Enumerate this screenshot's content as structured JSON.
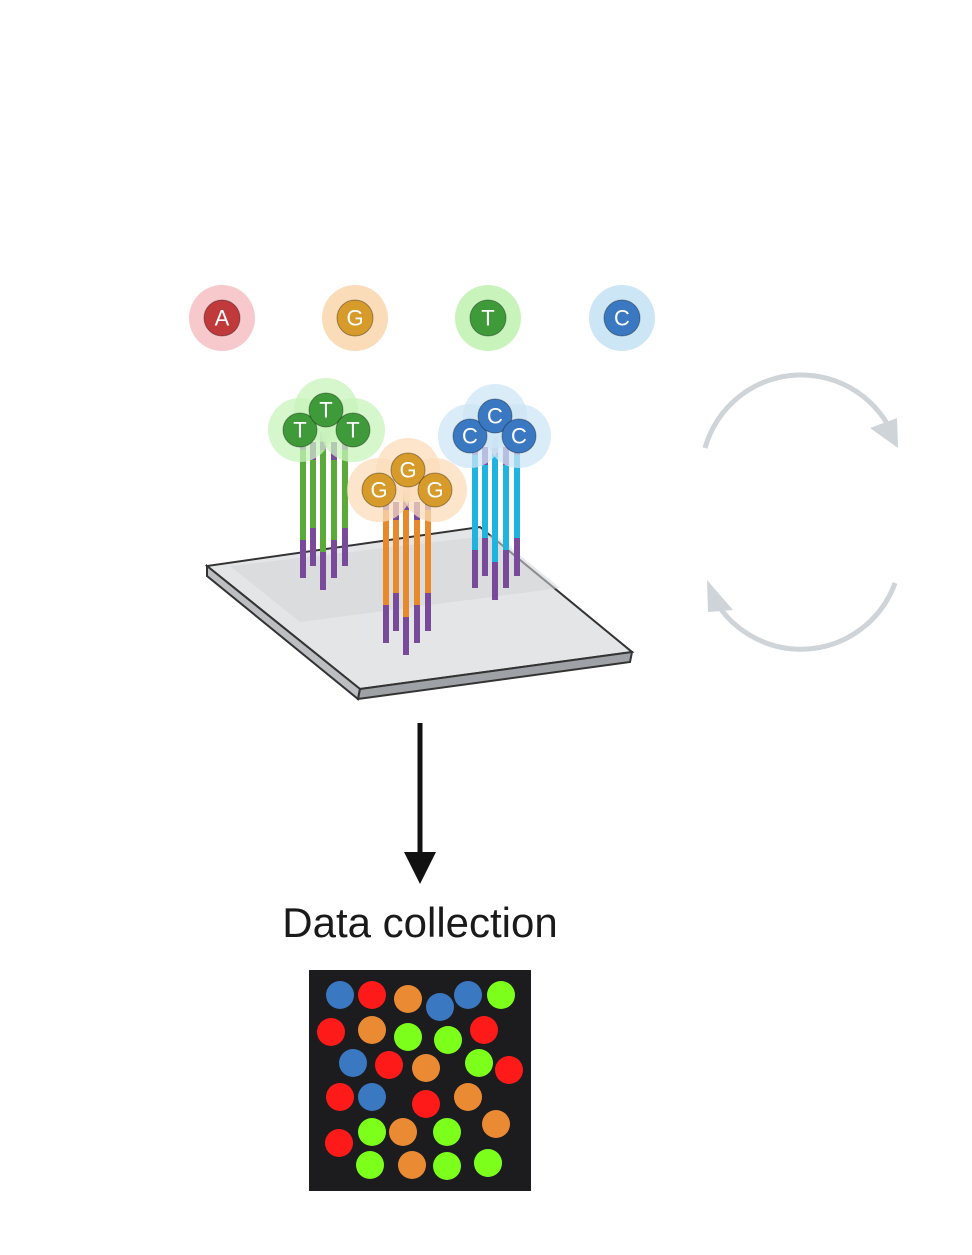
{
  "nucleotides": [
    {
      "letter": "A",
      "color": "#c0393b",
      "halo": "#f7c9cc"
    },
    {
      "letter": "G",
      "color": "#d69b2a",
      "halo": "#fbdcb9"
    },
    {
      "letter": "T",
      "color": "#3f9a3a",
      "halo": "#c8f3bb"
    },
    {
      "letter": "C",
      "color": "#3a78c2",
      "halo": "#cde6f6"
    }
  ],
  "clusters": [
    {
      "letter": "T",
      "color": "#3f9a3a",
      "strand_color": "#5aaa3a"
    },
    {
      "letter": "G",
      "color": "#d69b2a",
      "strand_color": "#e8892c"
    },
    {
      "letter": "C",
      "color": "#3a78c2",
      "strand_color": "#1fb4e0"
    }
  ],
  "adapter_color": "#7a4a9a",
  "caption": "Data collection",
  "data_grid": {
    "background": "#1c1c1e",
    "dot_colors": {
      "blue": "#3a78c2",
      "red": "#ff1a1a",
      "orange": "#ea8a32",
      "green": "#7cff1a"
    },
    "dots": [
      "blue",
      "red",
      "orange",
      "blue",
      "blue",
      "green",
      "red",
      "orange",
      "green",
      "green",
      "red",
      "blue",
      "red",
      "orange",
      "green",
      "red",
      "red",
      "blue",
      "red",
      "orange",
      "green",
      "orange",
      "green",
      "red",
      "orange",
      "green",
      "orange",
      "green",
      "blue",
      "green"
    ]
  },
  "cycle_arrow_color": "#cfd4d8"
}
